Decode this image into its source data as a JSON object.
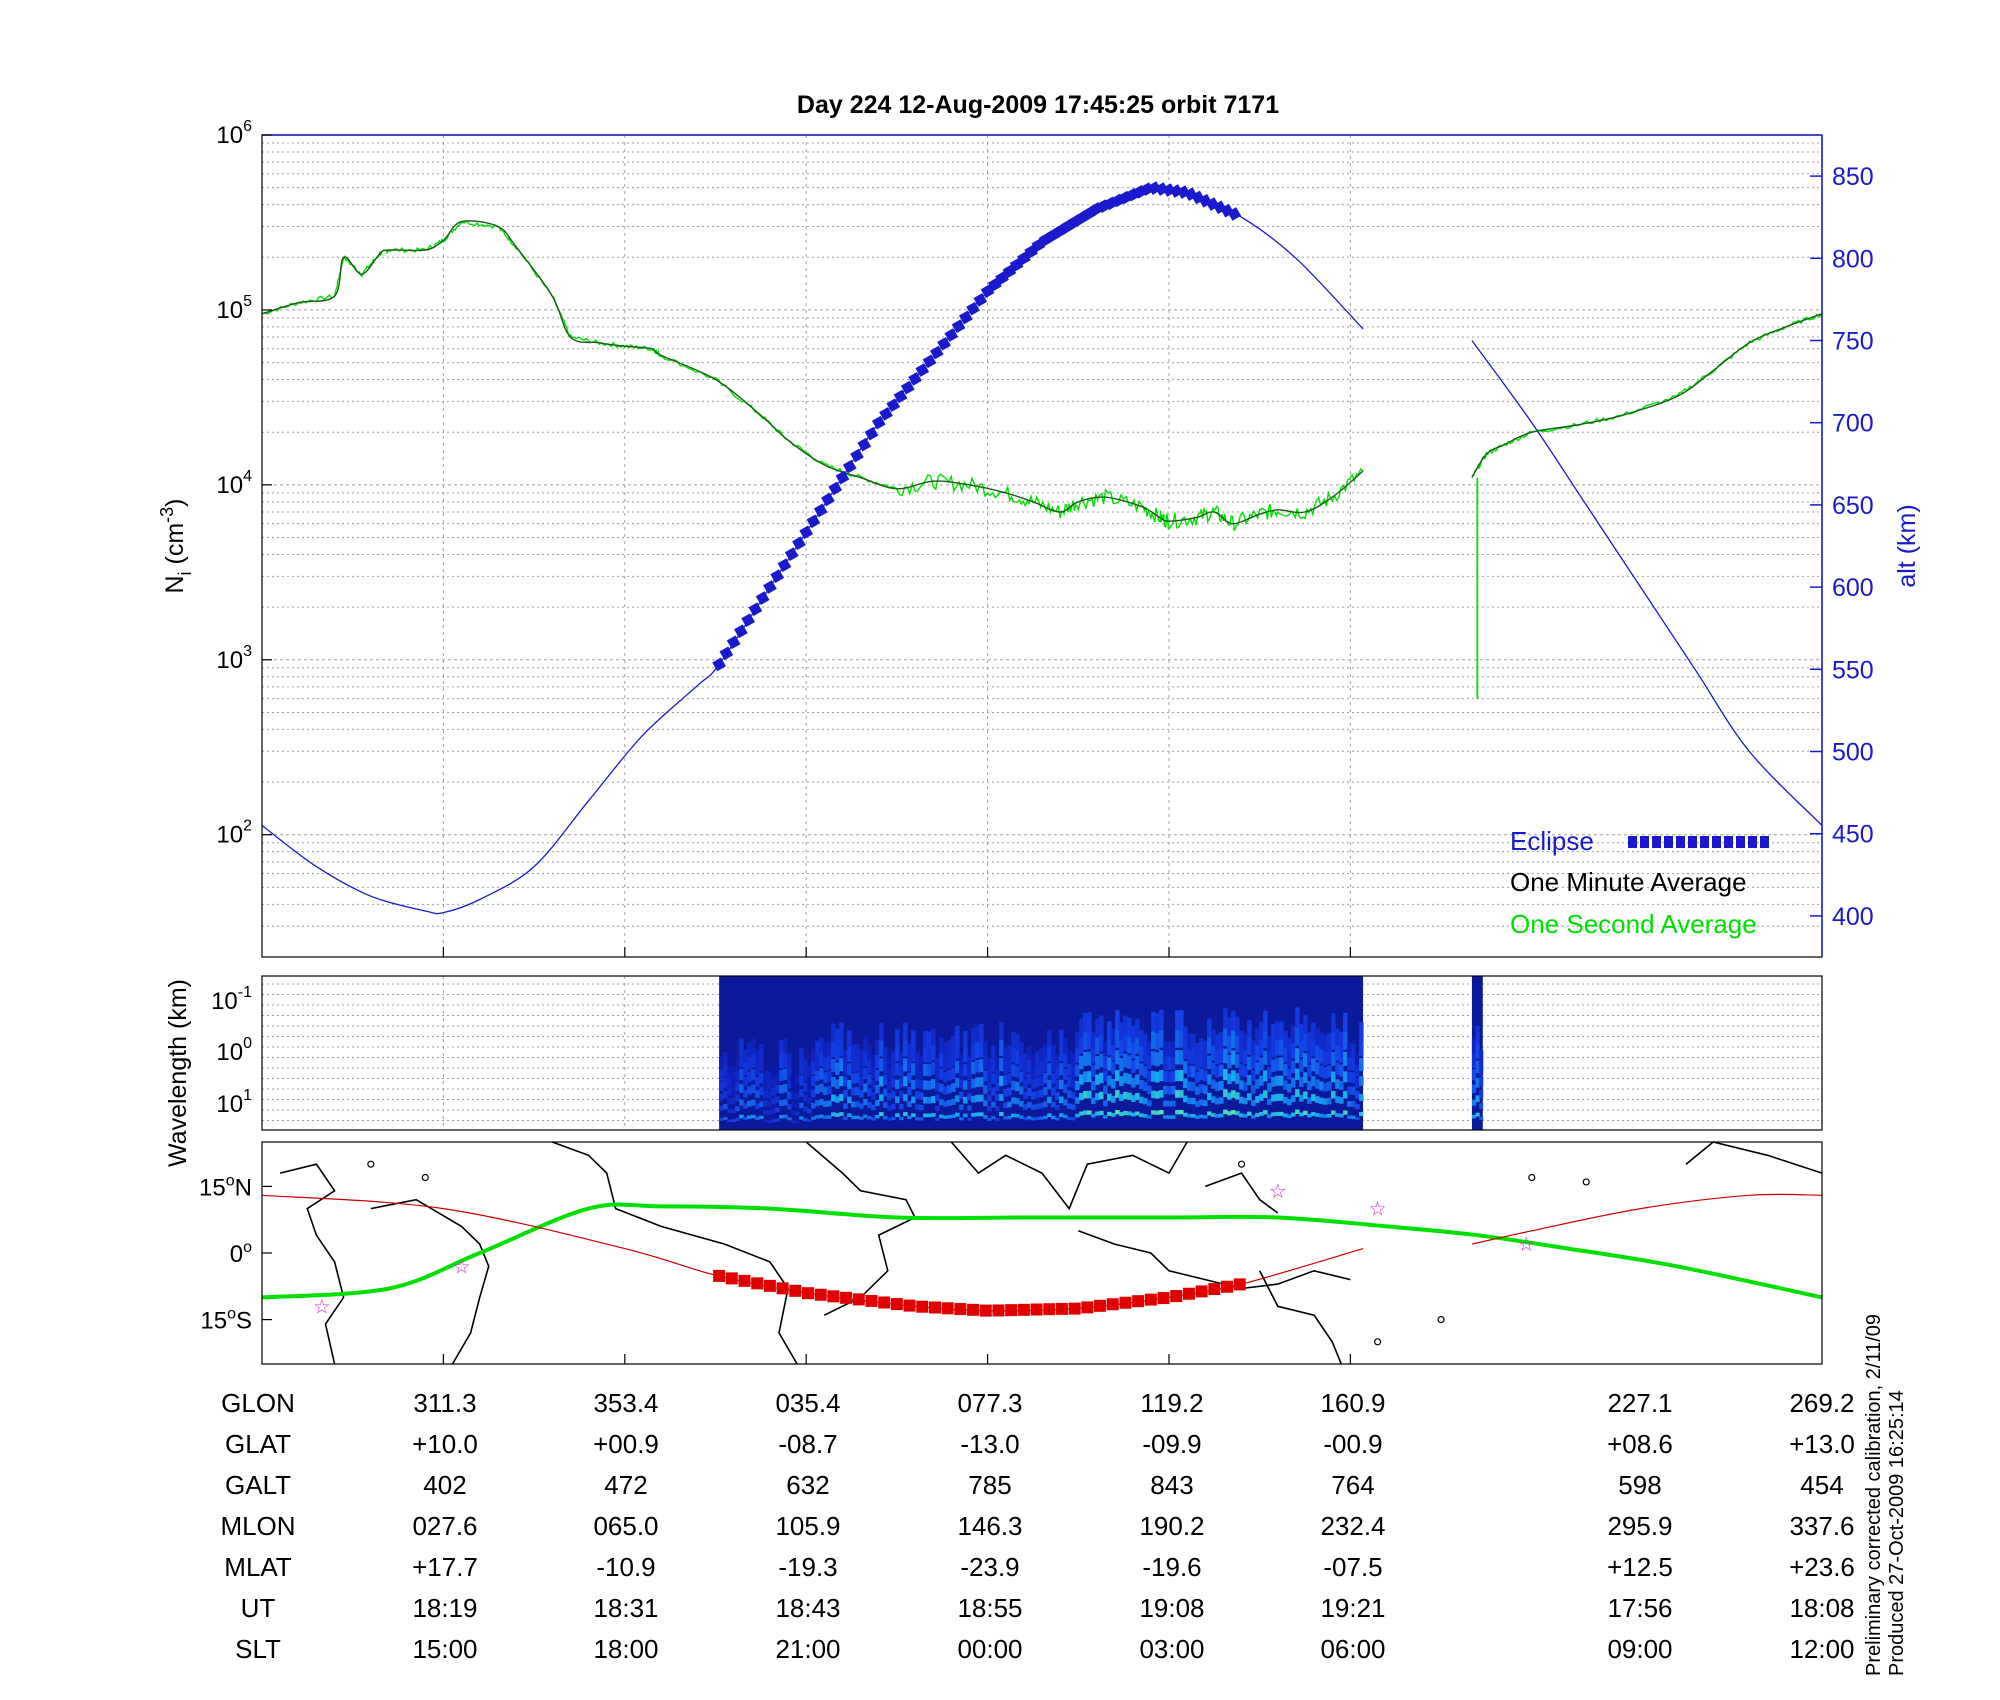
{
  "chart_data": [
    {
      "type": "line",
      "title": "Day 224  12-Aug-2009 17:45:25   orbit 7171",
      "ylabel_left": "N_i (cm^-3)",
      "ylabel_left_parts": {
        "base": "N",
        "sub": "i",
        "open": " (cm",
        "sup": "-3",
        "close": ")"
      },
      "y_left_scale": "log",
      "y_left_ticks": [
        {
          "base": "10",
          "exp": "2",
          "value": 100
        },
        {
          "base": "10",
          "exp": "3",
          "value": 1000
        },
        {
          "base": "10",
          "exp": "4",
          "value": 10000
        },
        {
          "base": "10",
          "exp": "5",
          "value": 100000
        },
        {
          "base": "10",
          "exp": "6",
          "value": 1000000
        }
      ],
      "y_left_range": [
        20,
        1000000
      ],
      "ylabel_right": "alt (km)",
      "y_right_ticks": [
        "400",
        "450",
        "500",
        "550",
        "600",
        "650",
        "700",
        "750",
        "800",
        "850"
      ],
      "y_right_range": [
        375,
        875
      ],
      "x_range": [
        0,
        8.6
      ],
      "x_gridlines": [
        1,
        2,
        3,
        4,
        5,
        6
      ],
      "x_gap": [
        6.07,
        6.67
      ],
      "legend": [
        {
          "label": "Eclipse",
          "color": "#1a1acc"
        },
        {
          "label": "One Minute Average",
          "color": "#000000"
        },
        {
          "label": "One Second Average",
          "color": "#00e000"
        }
      ],
      "series": [
        {
          "name": "One Minute Average",
          "color": "#1a5c1a",
          "x": [
            0,
            0.2,
            0.4,
            0.45,
            0.55,
            0.65,
            0.7,
            0.9,
            1.0,
            1.1,
            1.3,
            1.4,
            1.6,
            1.7,
            1.85,
            2.0,
            2.15,
            2.2,
            2.5,
            2.75,
            2.9,
            3.1,
            3.3,
            3.5,
            3.7,
            3.9,
            4.1,
            4.25,
            4.4,
            4.5,
            4.65,
            4.85,
            4.95,
            5.0,
            5.15,
            5.25,
            5.35,
            5.5,
            5.6,
            5.75,
            5.9,
            6.07,
            6.67,
            6.75,
            6.85,
            7.0,
            7.25,
            7.5,
            7.8,
            8.0,
            8.2,
            8.4,
            8.6
          ],
          "y": [
            95000,
            110000,
            120000,
            200000,
            160000,
            210000,
            220000,
            220000,
            250000,
            320000,
            300000,
            230000,
            120000,
            70000,
            65000,
            62000,
            60000,
            55000,
            40000,
            25000,
            18000,
            13000,
            11000,
            9500,
            10500,
            10000,
            9000,
            8000,
            7000,
            8000,
            8500,
            7500,
            6500,
            6200,
            6500,
            7000,
            6000,
            6800,
            7200,
            7000,
            8500,
            12000,
            11000,
            15000,
            17000,
            20000,
            22000,
            25000,
            32000,
            45000,
            65000,
            80000,
            95000
          ]
        },
        {
          "name": "One Second Average",
          "color": "#00e000",
          "note_spike": {
            "x": 6.7,
            "y_low": 600
          }
        },
        {
          "name": "altitude",
          "color": "#1a1acc",
          "axis": "right",
          "x": [
            0,
            0.3,
            0.6,
            0.9,
            1.0,
            1.2,
            1.5,
            1.8,
            2.1,
            2.4,
            2.52,
            2.8,
            3.1,
            3.4,
            3.7,
            4.0,
            4.3,
            4.6,
            4.9,
            5.1,
            5.4,
            5.7,
            6.07,
            6.67,
            7.0,
            7.3,
            7.6,
            7.9,
            8.2,
            8.6
          ],
          "y": [
            455,
            430,
            412,
            403,
            402,
            410,
            430,
            470,
            510,
            540,
            553,
            600,
            650,
            700,
            740,
            780,
            810,
            830,
            843,
            840,
            825,
            800,
            757,
            750,
            700,
            650,
            600,
            550,
            500,
            455
          ]
        },
        {
          "name": "Eclipse",
          "color": "#1a1acc",
          "axis": "right",
          "x_range": [
            2.52,
            5.4
          ]
        }
      ]
    },
    {
      "type": "heatmap",
      "ylabel": "Wavelength (km)",
      "y_ticks": [
        {
          "base": "10",
          "exp": "-1"
        },
        {
          "base": "10",
          "exp": "0"
        },
        {
          "base": "10",
          "exp": "1"
        }
      ],
      "x_range": [
        0,
        8.6
      ],
      "data_segments": [
        [
          2.52,
          6.07
        ],
        [
          6.67,
          6.73
        ]
      ],
      "intensity_peak_x": [
        4.5,
        6.0
      ]
    },
    {
      "type": "map",
      "y_ticks": [
        {
          "value": "15",
          "unit": "N"
        },
        {
          "value": "0",
          "unit": ""
        },
        {
          "value": "15",
          "unit": "S"
        }
      ],
      "lat_range": [
        -25,
        25
      ],
      "x_range": [
        0,
        8.6
      ],
      "magnetic_equator": {
        "color": "#00e000",
        "x": [
          0,
          0.7,
          1.2,
          1.8,
          2.2,
          2.8,
          3.5,
          4.2,
          5.0,
          5.6,
          6.2,
          6.7,
          7.2,
          7.8,
          8.6
        ],
        "lat": [
          -10,
          -8,
          0,
          10,
          10.5,
          10,
          8,
          8,
          8,
          8,
          6,
          4,
          1,
          -3,
          -10
        ]
      },
      "orbit_track": {
        "color": "#cc0000",
        "x": [
          0,
          1.0,
          2.0,
          2.5,
          3.0,
          3.6,
          4.0,
          4.5,
          5.0,
          5.4,
          6.07,
          6.67,
          7.0,
          7.6,
          8.2,
          8.6
        ],
        "lat": [
          13,
          10,
          1,
          -5,
          -9,
          -12,
          -13,
          -12.5,
          -10,
          -7,
          1,
          2,
          5,
          10,
          13,
          13
        ]
      },
      "eclipse_x_range": [
        2.52,
        5.4
      ],
      "station_marks_x_lat": [
        [
          0.33,
          -12
        ],
        [
          1.1,
          -3
        ],
        [
          5.6,
          14
        ],
        [
          6.15,
          10
        ],
        [
          6.97,
          2
        ]
      ]
    }
  ],
  "table": {
    "rows": [
      {
        "label": "GLON",
        "values": [
          "311.3",
          "353.4",
          "035.4",
          "077.3",
          "119.2",
          "160.9",
          "227.1",
          "269.2"
        ]
      },
      {
        "label": "GLAT",
        "values": [
          "+10.0",
          "+00.9",
          "-08.7",
          "-13.0",
          "-09.9",
          "-00.9",
          "+08.6",
          "+13.0"
        ]
      },
      {
        "label": "GALT",
        "values": [
          "402",
          "472",
          "632",
          "785",
          "843",
          "764",
          "598",
          "454"
        ]
      },
      {
        "label": "MLON",
        "values": [
          "027.6",
          "065.0",
          "105.9",
          "146.3",
          "190.2",
          "232.4",
          "295.9",
          "337.6"
        ]
      },
      {
        "label": "MLAT",
        "values": [
          "+17.7",
          "-10.9",
          "-19.3",
          "-23.9",
          "-19.6",
          "-07.5",
          "+12.5",
          "+23.6"
        ]
      },
      {
        "label": "UT",
        "values": [
          "18:19",
          "18:31",
          "18:43",
          "18:55",
          "19:08",
          "19:21",
          "17:56",
          "18:08"
        ]
      },
      {
        "label": "SLT",
        "values": [
          "15:00",
          "18:00",
          "21:00",
          "00:00",
          "03:00",
          "06:00",
          "09:00",
          "12:00"
        ]
      }
    ]
  },
  "footer": {
    "line1": "Preliminary corrected calibration, 2/11/09",
    "line2": "Produced 27-Oct-2009 16:25:14"
  },
  "colors": {
    "axis_blue": "#1a1acc",
    "green": "#00e000",
    "dark_green": "#1a5c1a",
    "red": "#e00000",
    "grid": "#a0a0a0"
  }
}
